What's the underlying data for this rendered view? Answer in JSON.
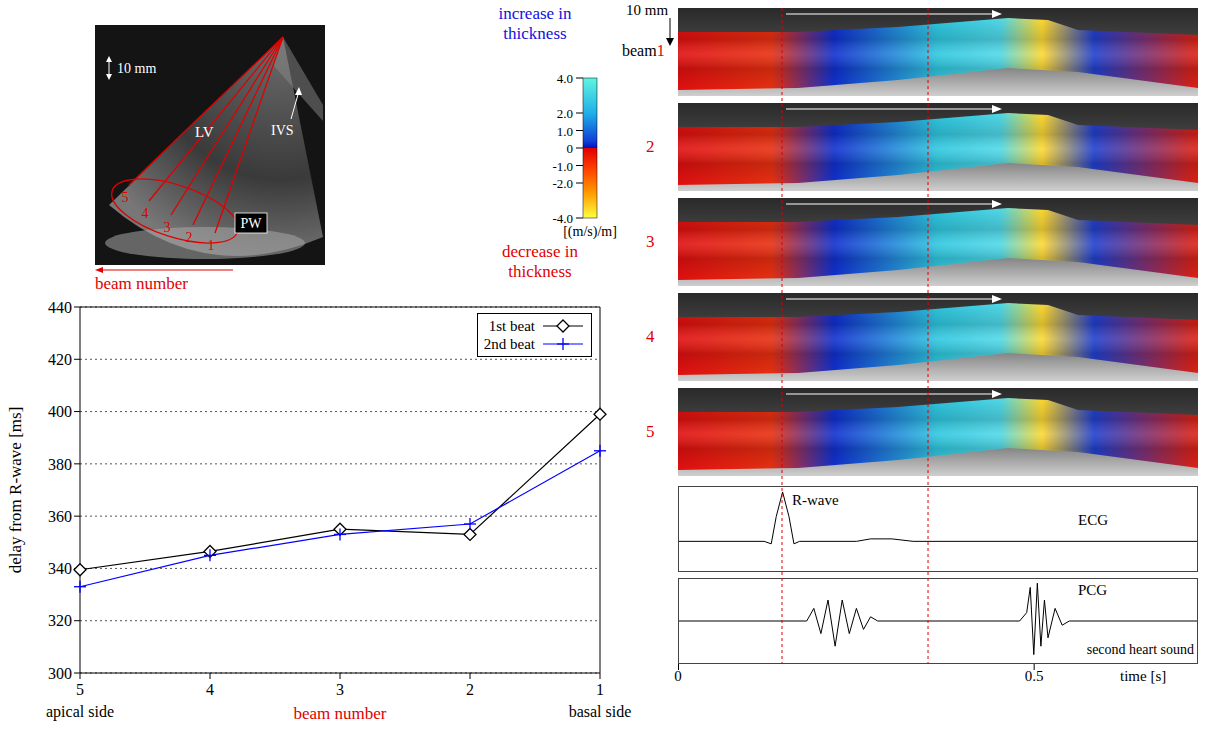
{
  "chart_data": {
    "type": "line",
    "categories": [
      "5",
      "4",
      "3",
      "2",
      "1"
    ],
    "x_end_labels": [
      "apical side",
      "basal side"
    ],
    "x_label": "beam number",
    "y_label": "delay from R-wave [ms]",
    "ylim": [
      300,
      440
    ],
    "yticks": [
      300,
      320,
      340,
      360,
      380,
      400,
      420,
      440
    ],
    "grid": true,
    "legend": "upper right",
    "series": [
      {
        "name": "1st beat",
        "color": "#000000",
        "marker": "diamond",
        "values": [
          339.5,
          346.5,
          355,
          353,
          399
        ]
      },
      {
        "name": "2nd beat",
        "color": "#0000ff",
        "marker": "plus",
        "values": [
          333,
          345,
          353,
          357,
          385
        ]
      }
    ]
  },
  "echo_image": {
    "scale_label": "10 mm",
    "cavity": "LV",
    "septum": "IVS",
    "wall": "PW",
    "beams": [
      "1",
      "2",
      "3",
      "4",
      "5"
    ],
    "axis_label": "beam number"
  },
  "colorbar": {
    "top_label": "increase in thickness",
    "bottom_label": "decrease in thickness",
    "unit": "[(m/s)/m]",
    "range": [
      -4,
      4
    ],
    "ticks": [
      {
        "value": 4,
        "label": "4.0"
      },
      {
        "value": 2,
        "label": "2.0"
      },
      {
        "value": 1,
        "label": "1.0"
      },
      0,
      {
        "value": -1,
        "label": "-1.0"
      },
      {
        "value": -2,
        "label": "-2.0"
      },
      {
        "value": -4,
        "label": "-4.0"
      }
    ]
  },
  "mmode": {
    "scale_label": "10 mm",
    "row_title": "beam",
    "beams": [
      "1",
      "2",
      "3",
      "4",
      "5"
    ]
  },
  "time_axis": {
    "xlim": [
      0,
      0.73
    ],
    "xticks": [
      0,
      0.5
    ],
    "label": "time [s]",
    "markers": [
      0.146,
      0.351
    ]
  },
  "ecg": {
    "title": "ECG",
    "annotation": "R-wave",
    "ylim": [
      -0.6,
      1.1
    ],
    "t": [
      0,
      0.12,
      0.13,
      0.137,
      0.146,
      0.155,
      0.162,
      0.17,
      0.25,
      0.27,
      0.3,
      0.33,
      0.73
    ],
    "v": [
      0,
      0,
      -0.05,
      0.5,
      1,
      0.5,
      -0.05,
      0,
      0,
      0.05,
      0.05,
      0,
      0
    ]
  },
  "pcg": {
    "title": "PCG",
    "annotation": "second heart sound",
    "ylim": [
      -1,
      1
    ],
    "t": [
      0,
      0.18,
      0.19,
      0.2,
      0.21,
      0.22,
      0.23,
      0.24,
      0.25,
      0.26,
      0.27,
      0.28,
      0.48,
      0.49,
      0.495,
      0.5,
      0.505,
      0.51,
      0.515,
      0.52,
      0.53,
      0.54,
      0.55,
      0.73
    ],
    "v": [
      0,
      0,
      0.3,
      -0.3,
      0.5,
      -0.6,
      0.5,
      -0.3,
      0.3,
      -0.2,
      0.1,
      0,
      0,
      0.2,
      0.8,
      -0.8,
      0.9,
      -0.6,
      0.5,
      -0.4,
      0.3,
      -0.1,
      0,
      0
    ]
  }
}
